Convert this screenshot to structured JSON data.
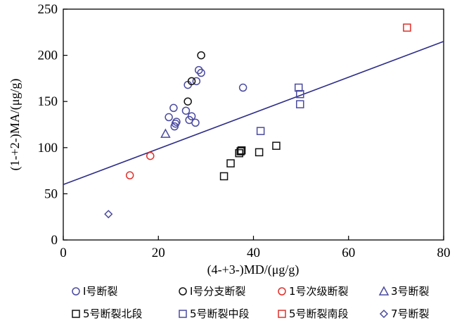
{
  "chart_data": {
    "type": "scatter",
    "xlabel": "(4-+3-)MD/(μg/g)",
    "ylabel": "(1-+2-)MA/(μg/g)",
    "xlim": [
      0,
      80
    ],
    "ylim": [
      0,
      250
    ],
    "x_ticks": [
      "0",
      "20",
      "40",
      "60",
      "80"
    ],
    "y_ticks": [
      "0",
      "50",
      "100",
      "150",
      "200",
      "250"
    ],
    "grid": false,
    "legend_position": "bottom",
    "fit_line": {
      "x": [
        0,
        80
      ],
      "y": [
        60,
        215
      ],
      "color": "#2e2e8a"
    },
    "series": [
      {
        "name": "Ⅰ号断裂",
        "marker": "circle",
        "color": "#4a4aa0",
        "x": [
          22.2,
          23.2,
          23.4,
          23.6,
          23.8,
          25.8,
          26.2,
          26.5,
          27.0,
          27.8,
          28.0,
          28.5,
          29.0,
          37.8
        ],
        "y": [
          133,
          143,
          123,
          126,
          128,
          140,
          168,
          130,
          134,
          127,
          172,
          184,
          181,
          165
        ]
      },
      {
        "name": "Ⅰ号分支断裂",
        "marker": "circle",
        "color": "#111111",
        "x": [
          26.2,
          27.0,
          29.0
        ],
        "y": [
          150,
          172,
          200
        ]
      },
      {
        "name": "1号次级断裂",
        "marker": "circle",
        "color": "#e0302a",
        "x": [
          14.0,
          18.3
        ],
        "y": [
          70,
          91
        ]
      },
      {
        "name": "3号断裂",
        "marker": "triangle",
        "color": "#4a4aa0",
        "x": [
          21.5
        ],
        "y": [
          115
        ]
      },
      {
        "name": "5号断裂北段",
        "marker": "square",
        "color": "#111111",
        "x": [
          33.8,
          35.2,
          37.0,
          37.3,
          37.5,
          41.2,
          44.8
        ],
        "y": [
          69,
          83,
          94,
          96,
          97,
          95,
          102
        ]
      },
      {
        "name": "5号断裂中段",
        "marker": "square",
        "color": "#4a4aa0",
        "x": [
          41.5,
          49.5,
          49.8,
          49.8
        ],
        "y": [
          118,
          165,
          158,
          147
        ]
      },
      {
        "name": "5号断裂南段",
        "marker": "square",
        "color": "#e0302a",
        "x": [
          72.3
        ],
        "y": [
          230
        ]
      },
      {
        "name": "7号断裂",
        "marker": "diamond",
        "color": "#4a4aa0",
        "x": [
          9.5
        ],
        "y": [
          28
        ]
      }
    ]
  }
}
